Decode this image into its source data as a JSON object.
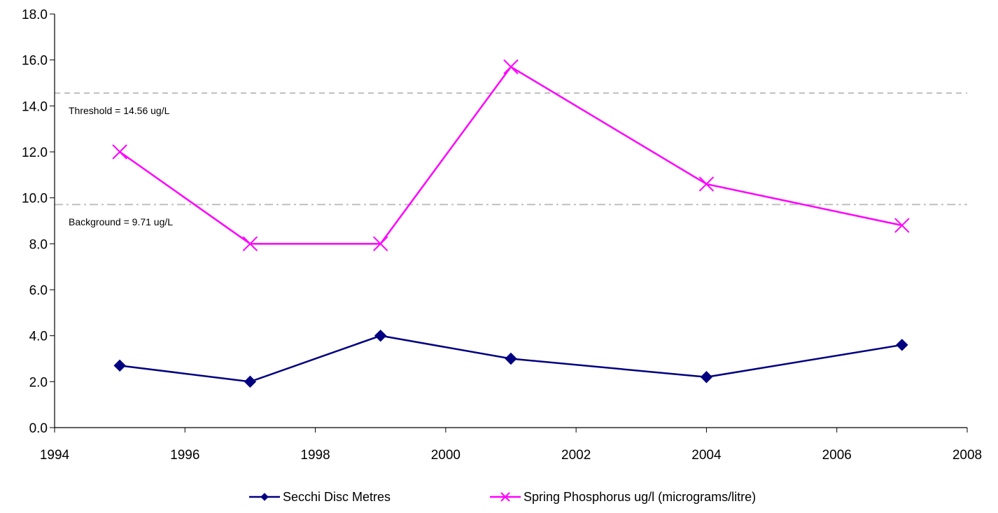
{
  "chart_data": {
    "type": "line",
    "title": "",
    "xlabel": "",
    "ylabel": "",
    "xlim": [
      1994,
      2008
    ],
    "ylim": [
      0,
      18
    ],
    "x_ticks": [
      "1994",
      "1996",
      "1998",
      "2000",
      "2002",
      "2004",
      "2006",
      "2008"
    ],
    "y_ticks": [
      "0.0",
      "2.0",
      "4.0",
      "6.0",
      "8.0",
      "10.0",
      "12.0",
      "14.0",
      "16.0",
      "18.0"
    ],
    "grid": false,
    "legend_position": "bottom",
    "series": [
      {
        "name": "Secchi Disc Metres",
        "color": "#000080",
        "marker": "diamond",
        "x": [
          1995,
          1997,
          1999,
          2001,
          2004,
          2007
        ],
        "values": [
          2.7,
          2.0,
          4.0,
          3.0,
          2.2,
          3.6
        ]
      },
      {
        "name": "Spring Phosphorus  ug/l (micrograms/litre)",
        "color": "#FF00FF",
        "marker": "x",
        "x": [
          1995,
          1997,
          1999,
          2001,
          2004,
          2007
        ],
        "values": [
          12.0,
          8.0,
          8.0,
          15.7,
          10.6,
          8.8
        ]
      }
    ],
    "reference_lines": [
      {
        "label": "Threshold = 14.56 ug/L",
        "value": 14.56,
        "style": "dashed",
        "color": "#C0C0C0"
      },
      {
        "label": "Background = 9.71 ug/L",
        "value": 9.71,
        "style": "dash-dot",
        "color": "#C0C0C0"
      }
    ]
  }
}
